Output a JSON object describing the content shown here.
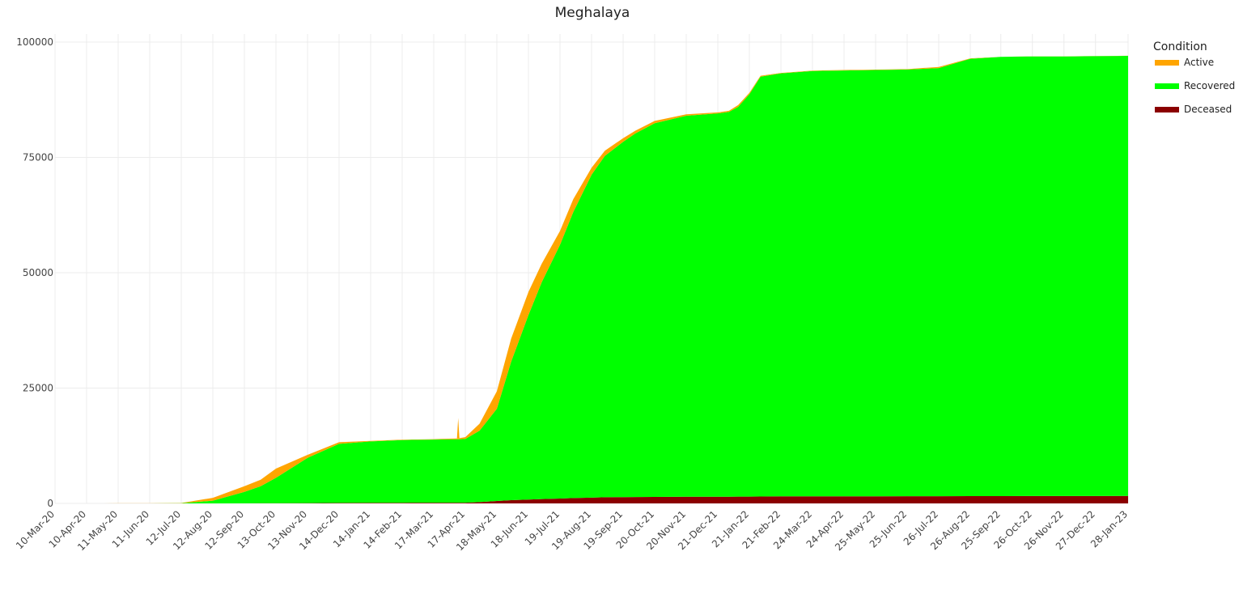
{
  "chart_data": {
    "type": "area",
    "stacked": true,
    "title": "Meghalaya",
    "xlabel": "",
    "ylabel": "",
    "ylim": [
      0,
      100000
    ],
    "y_ticks": [
      "0",
      "25000",
      "50000",
      "75000",
      "100000"
    ],
    "y_tick_values": [
      0,
      25000,
      50000,
      75000,
      100000
    ],
    "x_ticks": [
      "10-Mar-20",
      "10-Apr-20",
      "11-May-20",
      "11-Jun-20",
      "12-Jul-20",
      "12-Aug-20",
      "12-Sep-20",
      "13-Oct-20",
      "13-Nov-20",
      "14-Dec-20",
      "14-Jan-21",
      "14-Feb-21",
      "17-Mar-21",
      "17-Apr-21",
      "18-May-21",
      "18-Jun-21",
      "19-Jul-21",
      "19-Aug-21",
      "19-Sep-21",
      "20-Oct-21",
      "20-Nov-21",
      "21-Dec-21",
      "21-Jan-22",
      "21-Feb-22",
      "24-Mar-22",
      "24-Apr-22",
      "25-May-22",
      "25-Jun-22",
      "26-Jul-22",
      "26-Aug-22",
      "25-Sep-22",
      "26-Oct-22",
      "26-Nov-22",
      "27-Dec-22",
      "28-Jan-23"
    ],
    "grid": true,
    "legend": {
      "title": "Condition",
      "position": "right-top"
    },
    "x": [
      "10-Mar-20",
      "10-Apr-20",
      "11-May-20",
      "11-Jun-20",
      "12-Jul-20",
      "12-Aug-20",
      "12-Sep-20",
      "28-Sep-20",
      "13-Oct-20",
      "13-Nov-20",
      "14-Dec-20",
      "14-Jan-21",
      "14-Feb-21",
      "17-Mar-21",
      "10-Apr-21",
      "17-Apr-21",
      "1-May-21",
      "18-May-21",
      "1-Jun-21",
      "18-Jun-21",
      "1-Jul-21",
      "19-Jul-21",
      "1-Aug-21",
      "19-Aug-21",
      "1-Sep-21",
      "19-Sep-21",
      "1-Oct-21",
      "20-Oct-21",
      "20-Nov-21",
      "21-Dec-21",
      "1-Jan-22",
      "10-Jan-22",
      "21-Jan-22",
      "1-Feb-22",
      "21-Feb-22",
      "24-Mar-22",
      "24-Apr-22",
      "25-May-22",
      "25-Jun-22",
      "26-Jul-22",
      "26-Aug-22",
      "25-Sep-22",
      "26-Oct-22",
      "26-Nov-22",
      "27-Dec-22",
      "28-Jan-23"
    ],
    "series": [
      {
        "name": "Deceased",
        "color": "#8B0000",
        "values": [
          0,
          0,
          0,
          0,
          2,
          5,
          15,
          30,
          45,
          75,
          105,
          130,
          145,
          150,
          150,
          160,
          280,
          520,
          700,
          820,
          950,
          1060,
          1150,
          1250,
          1330,
          1370,
          1390,
          1410,
          1430,
          1450,
          1460,
          1470,
          1480,
          1500,
          1520,
          1530,
          1540,
          1550,
          1560,
          1570,
          1580,
          1585,
          1590,
          1595,
          1600,
          1610
        ]
      },
      {
        "name": "Recovered",
        "color": "#00FF00",
        "values": [
          0,
          0,
          0,
          0,
          40,
          600,
          2500,
          3700,
          5500,
          9800,
          12800,
          13300,
          13600,
          13700,
          13750,
          13800,
          15500,
          20000,
          30000,
          40000,
          47000,
          55000,
          62000,
          70000,
          74000,
          77000,
          78800,
          81000,
          82600,
          83100,
          83400,
          84500,
          87200,
          91000,
          91700,
          92200,
          92300,
          92400,
          92500,
          92800,
          94800,
          95200,
          95300,
          95300,
          95350,
          95400
        ]
      },
      {
        "name": "Active",
        "color": "#FFA500",
        "values": [
          0,
          5,
          10,
          15,
          40,
          600,
          1200,
          1400,
          2000,
          650,
          350,
          120,
          60,
          80,
          200,
          400,
          1500,
          3800,
          5000,
          5000,
          4000,
          3000,
          2800,
          1500,
          1100,
          800,
          600,
          500,
          300,
          200,
          250,
          400,
          300,
          200,
          100,
          100,
          100,
          80,
          80,
          250,
          100,
          30,
          20,
          20,
          20,
          20
        ]
      }
    ],
    "annotations_spike": {
      "date": "10-Apr-21",
      "value": 18500
    }
  }
}
